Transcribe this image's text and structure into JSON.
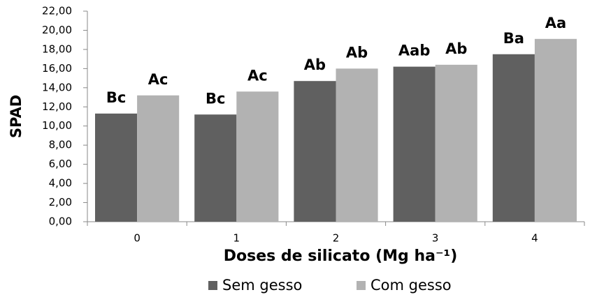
{
  "chart_data": {
    "type": "bar",
    "xlabel": "Doses de silicato (Mg ha⁻¹)",
    "ylabel": "SPAD",
    "categories": [
      "0",
      "1",
      "2",
      "3",
      "4"
    ],
    "series": [
      {
        "name": "Sem gesso",
        "color": "#606060",
        "values": [
          11.3,
          11.2,
          14.7,
          16.2,
          17.5
        ],
        "labels": [
          "Bc",
          "Bc",
          "Ab",
          "Aab",
          "Ba"
        ]
      },
      {
        "name": "Com gesso",
        "color": "#b2b2b2",
        "values": [
          13.2,
          13.6,
          16.0,
          16.4,
          19.1
        ],
        "labels": [
          "Ac",
          "Ac",
          "Ab",
          "Ab",
          "Aa"
        ]
      }
    ],
    "ylim": [
      0,
      22
    ],
    "yticks": [
      {
        "value": 0,
        "label": "0,00"
      },
      {
        "value": 2,
        "label": "2,00"
      },
      {
        "value": 4,
        "label": "4,00"
      },
      {
        "value": 6,
        "label": "6,00"
      },
      {
        "value": 8,
        "label": "8,00"
      },
      {
        "value": 10,
        "label": "10,00"
      },
      {
        "value": 12,
        "label": "12,00"
      },
      {
        "value": 14,
        "label": "14,00"
      },
      {
        "value": 16,
        "label": "16,00"
      },
      {
        "value": 18,
        "label": "18,00"
      },
      {
        "value": 20,
        "label": "20,00"
      },
      {
        "value": 22,
        "label": "22,00"
      }
    ],
    "grid": false,
    "legend": "bottom"
  }
}
